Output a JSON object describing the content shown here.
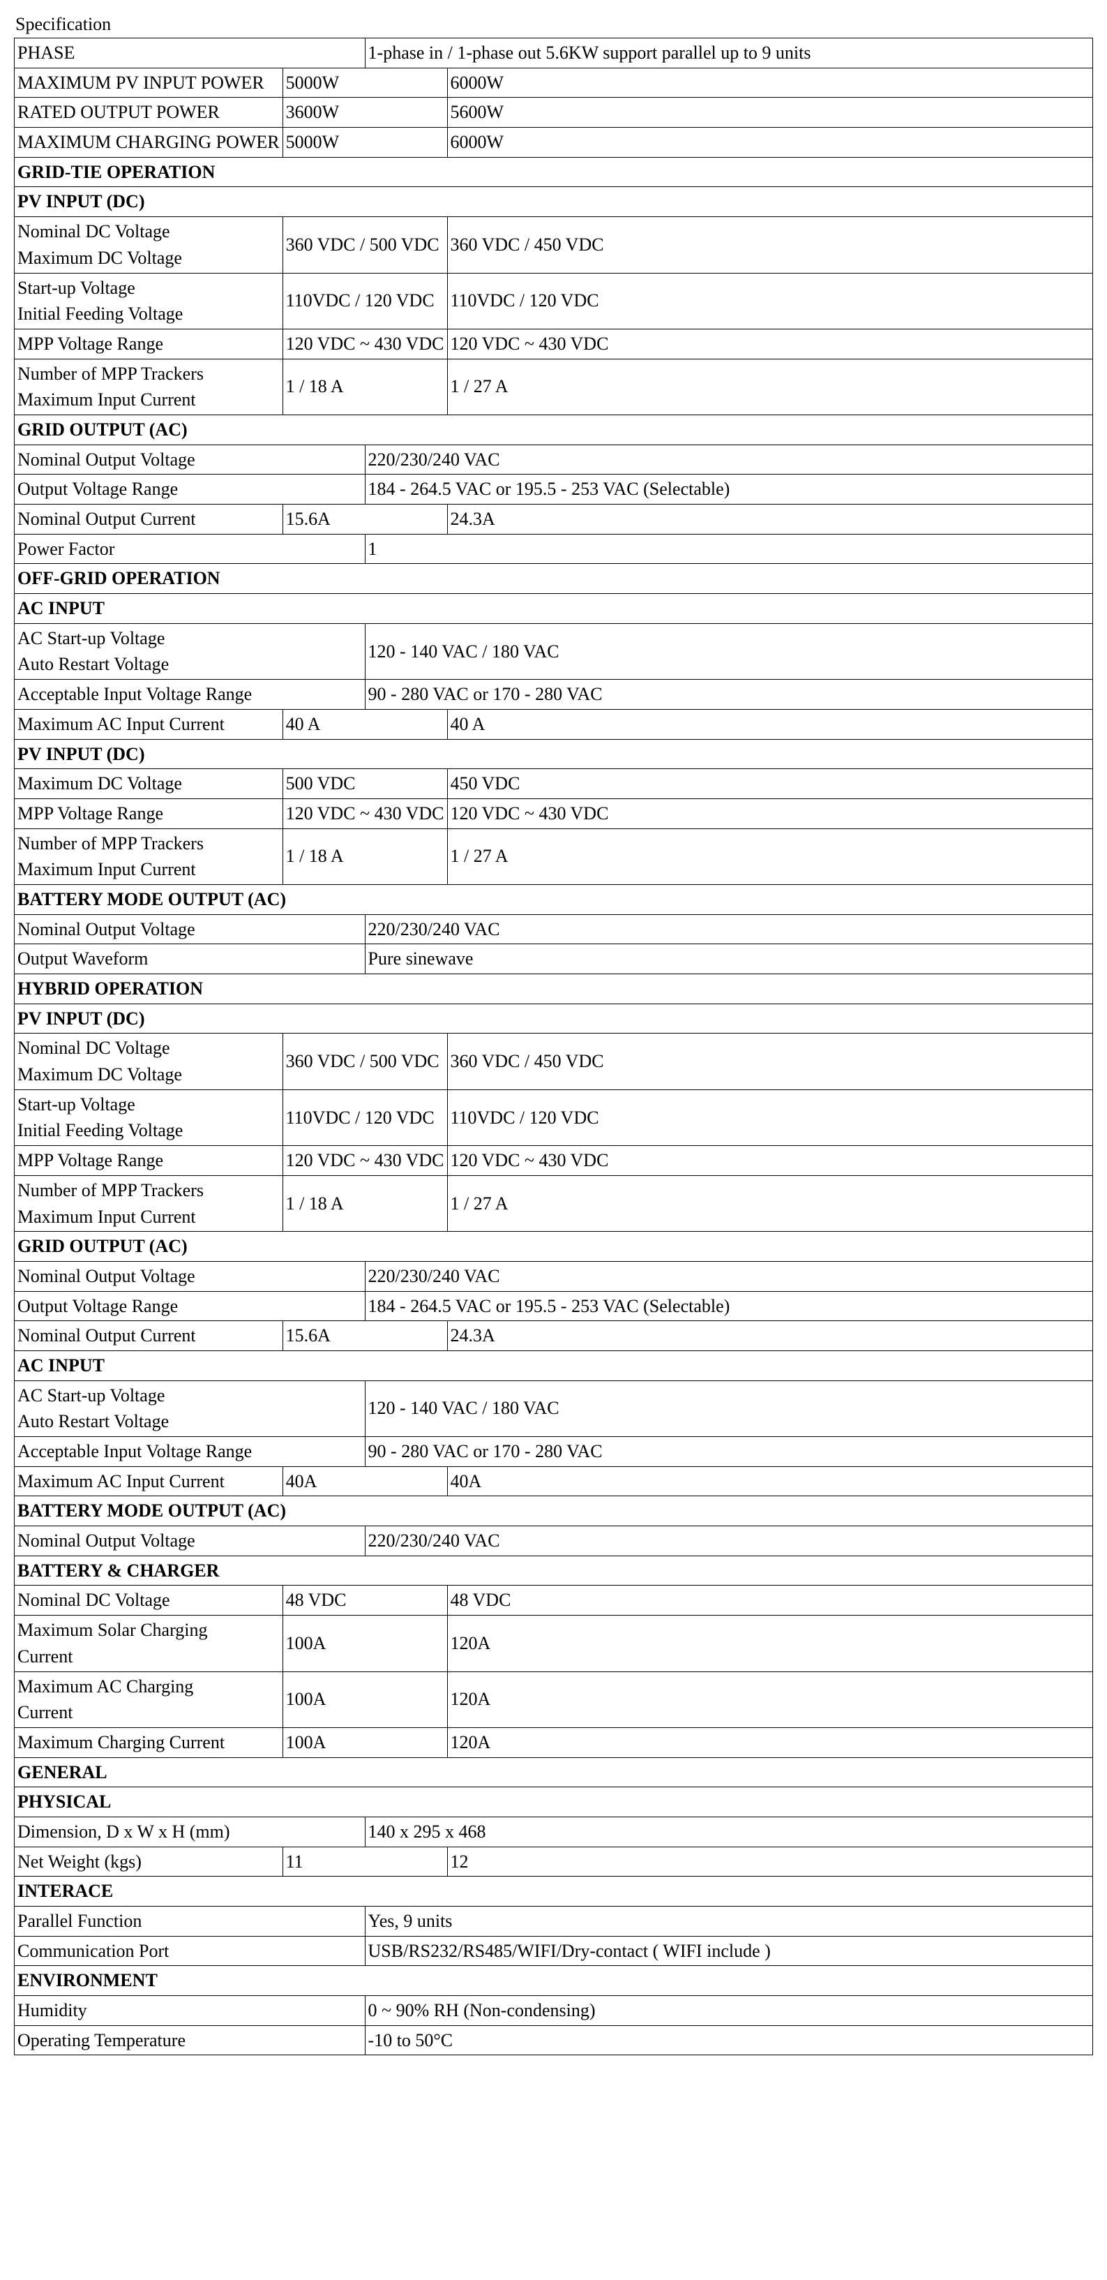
{
  "title": "Specification",
  "rows": [
    {
      "type": "data3w",
      "label": "PHASE",
      "val": "1-phase in / 1-phase out   5.6KW support parallel up to 9 units"
    },
    {
      "type": "data3",
      "label": "MAXIMUM PV INPUT POWER",
      "v1": "5000W",
      "v2": "6000W"
    },
    {
      "type": "data3",
      "label": "RATED OUTPUT POWER",
      "v1": "3600W",
      "v2": "5600W"
    },
    {
      "type": "data3",
      "label": "MAXIMUM CHARGING POWER",
      "v1": "5000W",
      "v2": "6000W"
    },
    {
      "type": "header",
      "label": "GRID-TIE OPERATION"
    },
    {
      "type": "header",
      "label": "PV INPUT (DC)"
    },
    {
      "type": "data3ml",
      "label": "Nominal DC Voltage\nMaximum DC Voltage",
      "v1": "360 VDC / 500 VDC",
      "v2": "360 VDC / 450 VDC"
    },
    {
      "type": "data3ml",
      "label": "Start-up Voltage\nInitial Feeding Voltage",
      "v1": "110VDC / 120 VDC",
      "v2": "110VDC / 120 VDC"
    },
    {
      "type": "data3",
      "label": "MPP Voltage Range",
      "v1": "120 VDC ~ 430 VDC",
      "v2": "120 VDC ~ 430 VDC"
    },
    {
      "type": "data3ml",
      "label": "Number of MPP Trackers\nMaximum Input Current",
      "v1": "1 / 18 A",
      "v2": "1 / 27 A"
    },
    {
      "type": "header",
      "label": "GRID OUTPUT (AC)"
    },
    {
      "type": "data3w",
      "label": "Nominal Output Voltage",
      "val": "220/230/240 VAC"
    },
    {
      "type": "data3w",
      "label": "Output Voltage Range",
      "val": "184 - 264.5 VAC or 195.5 - 253 VAC (Selectable)"
    },
    {
      "type": "data3",
      "label": "Nominal Output Current",
      "v1": "15.6A",
      "v2": "24.3A"
    },
    {
      "type": "data3w",
      "label": "Power Factor",
      "val": "1"
    },
    {
      "type": "header",
      "label": "OFF-GRID OPERATION"
    },
    {
      "type": "header",
      "label": "AC INPUT"
    },
    {
      "type": "data3wml",
      "label": "AC Start-up Voltage\nAuto Restart Voltage",
      "val": "120 - 140 VAC / 180 VAC"
    },
    {
      "type": "data3w",
      "label": "Acceptable Input Voltage Range",
      "val": "90 - 280 VAC or 170 - 280 VAC"
    },
    {
      "type": "data3",
      "label": "Maximum AC Input Current",
      "v1": "40 A",
      "v2": "40 A"
    },
    {
      "type": "header",
      "label": "PV INPUT (DC)"
    },
    {
      "type": "data3",
      "label": "Maximum DC Voltage",
      "v1": "500 VDC",
      "v2": "450 VDC"
    },
    {
      "type": "data3",
      "label": "MPP Voltage Range",
      "v1": "120 VDC ~ 430 VDC",
      "v2": "120 VDC ~ 430 VDC"
    },
    {
      "type": "data3ml",
      "label": "Number of MPP Trackers\nMaximum Input Current",
      "v1": "1 / 18 A",
      "v2": "1 / 27 A"
    },
    {
      "type": "header",
      "label": "BATTERY MODE OUTPUT (AC)"
    },
    {
      "type": "data3w",
      "label": "Nominal Output Voltage",
      "val": "220/230/240 VAC"
    },
    {
      "type": "data3w",
      "label": "Output Waveform",
      "val": "Pure sinewave"
    },
    {
      "type": "header",
      "label": "HYBRID OPERATION"
    },
    {
      "type": "header",
      "label": "PV INPUT (DC)"
    },
    {
      "type": "data3ml",
      "label": "Nominal DC Voltage\nMaximum DC Voltage",
      "v1": "360 VDC / 500 VDC",
      "v2": "360 VDC / 450 VDC"
    },
    {
      "type": "data3ml",
      "label": "Start-up Voltage\nInitial Feeding Voltage",
      "v1": "110VDC / 120 VDC",
      "v2": "110VDC / 120 VDC"
    },
    {
      "type": "data3",
      "label": "MPP Voltage Range",
      "v1": "120 VDC ~ 430 VDC",
      "v2": "120 VDC ~ 430 VDC"
    },
    {
      "type": "data3ml",
      "label": "Number of MPP Trackers\nMaximum Input Current",
      "v1": "1 / 18 A",
      "v2": "1 / 27 A"
    },
    {
      "type": "header",
      "label": "GRID OUTPUT (AC)"
    },
    {
      "type": "data3w",
      "label": "Nominal Output Voltage",
      "val": "220/230/240 VAC"
    },
    {
      "type": "data3w",
      "label": "Output Voltage Range",
      "val": "184 - 264.5 VAC or 195.5 - 253 VAC (Selectable)"
    },
    {
      "type": "data3",
      "label": "Nominal Output Current",
      "v1": "15.6A",
      "v2": "24.3A"
    },
    {
      "type": "header",
      "label": "AC INPUT"
    },
    {
      "type": "data3wml",
      "label": "AC Start-up Voltage\nAuto Restart Voltage",
      "val": "120 - 140 VAC / 180 VAC"
    },
    {
      "type": "data3w",
      "label": "Acceptable Input Voltage Range",
      "val": "90 - 280 VAC or 170 - 280 VAC"
    },
    {
      "type": "data3",
      "label": "Maximum AC Input Current",
      "v1": "40A",
      "v2": "40A"
    },
    {
      "type": "header",
      "label": "BATTERY MODE OUTPUT (AC)"
    },
    {
      "type": "data3w",
      "label": "Nominal Output Voltage",
      "val": "220/230/240 VAC"
    },
    {
      "type": "header",
      "label": "BATTERY & CHARGER"
    },
    {
      "type": "data3",
      "label": "Nominal DC Voltage",
      "v1": "48 VDC",
      "v2": "48 VDC"
    },
    {
      "type": "data3ml",
      "label": "Maximum Solar Charging\nCurrent",
      "v1": "100A",
      "v2": "120A"
    },
    {
      "type": "data3ml",
      "label": "Maximum AC Charging\nCurrent",
      "v1": "100A",
      "v2": "120A"
    },
    {
      "type": "data3",
      "label": "Maximum Charging Current",
      "v1": "100A",
      "v2": "120A"
    },
    {
      "type": "header",
      "label": "GENERAL"
    },
    {
      "type": "header",
      "label": "PHYSICAL"
    },
    {
      "type": "data3w",
      "label": "Dimension, D x W x H (mm)",
      "val": "140 x 295 x 468"
    },
    {
      "type": "data3",
      "label": "Net Weight (kgs)",
      "v1": "11",
      "v2": "12"
    },
    {
      "type": "header",
      "label": "INTERACE"
    },
    {
      "type": "data3w",
      "label": "Parallel Function",
      "val": "Yes, 9 units"
    },
    {
      "type": "data3w",
      "label": "Communication Port",
      "val": "USB/RS232/RS485/WIFI/Dry-contact   ( WIFI include )"
    },
    {
      "type": "header",
      "label": "ENVIRONMENT"
    },
    {
      "type": "data3w",
      "label": "Humidity",
      "val": "0 ~ 90% RH (Non-condensing)"
    },
    {
      "type": "data3w",
      "label": "Operating Temperature",
      "val": "-10 to 50°C"
    }
  ]
}
